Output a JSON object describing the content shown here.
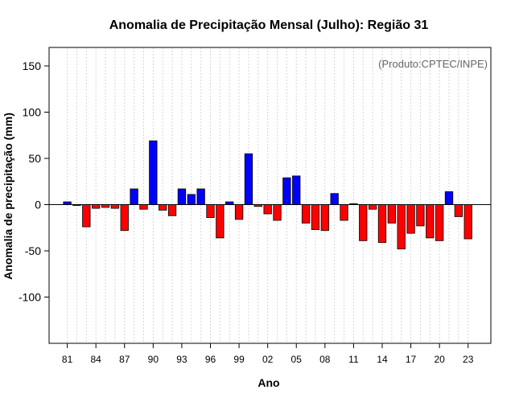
{
  "chart_data": {
    "type": "bar",
    "title": "Anomalia de Precipitação Mensal (Julho): Região 31",
    "xlabel": "Ano",
    "ylabel": "Anomalia de precipitação (mm)",
    "credit": "(Produto:CPTEC/INPE)",
    "ylim": [
      -150,
      170
    ],
    "yticks": [
      -100,
      -50,
      0,
      50,
      100,
      150
    ],
    "categories": [
      "1981",
      "1982",
      "1983",
      "1984",
      "1985",
      "1986",
      "1987",
      "1988",
      "1989",
      "1990",
      "1991",
      "1992",
      "1993",
      "1994",
      "1995",
      "1996",
      "1997",
      "1998",
      "1999",
      "2000",
      "2001",
      "2002",
      "2003",
      "2004",
      "2005",
      "2006",
      "2007",
      "2008",
      "2009",
      "2010",
      "2011",
      "2012",
      "2013",
      "2014",
      "2015",
      "2016",
      "2017",
      "2018",
      "2019",
      "2020",
      "2021",
      "2022",
      "2023"
    ],
    "values": [
      3,
      -1,
      -24,
      -4,
      -3,
      -4,
      -28,
      17,
      -5,
      69,
      -6,
      -12,
      17,
      11,
      17,
      -14,
      -36,
      3,
      -16,
      55,
      -2,
      -10,
      -17,
      29,
      31,
      -20,
      -27,
      -28,
      12,
      -17,
      1,
      -39,
      -5,
      -41,
      -20,
      -48,
      -31,
      -23,
      -36,
      -39,
      14,
      -13,
      -37
    ],
    "xtick_labels": [
      "81",
      "84",
      "87",
      "90",
      "93",
      "96",
      "99",
      "02",
      "05",
      "08",
      "11",
      "14",
      "17",
      "20",
      "23"
    ],
    "positive_color": "#0000ff",
    "negative_color": "#ff0000",
    "grid": true
  }
}
